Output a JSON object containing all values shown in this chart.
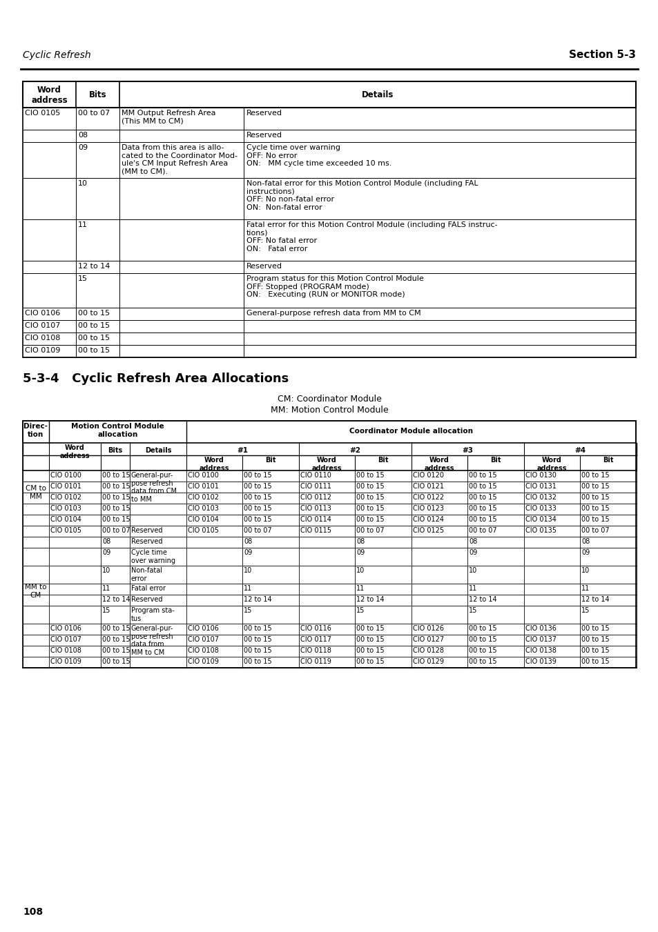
{
  "page_header_left": "Cyclic Refresh",
  "page_header_right": "Section 5-3",
  "section_title": "5-3-4   Cyclic Refresh Area Allocations",
  "subtitle1": "CM: Coordinator Module",
  "subtitle2": "MM: Motion Control Module",
  "page_number": "108"
}
